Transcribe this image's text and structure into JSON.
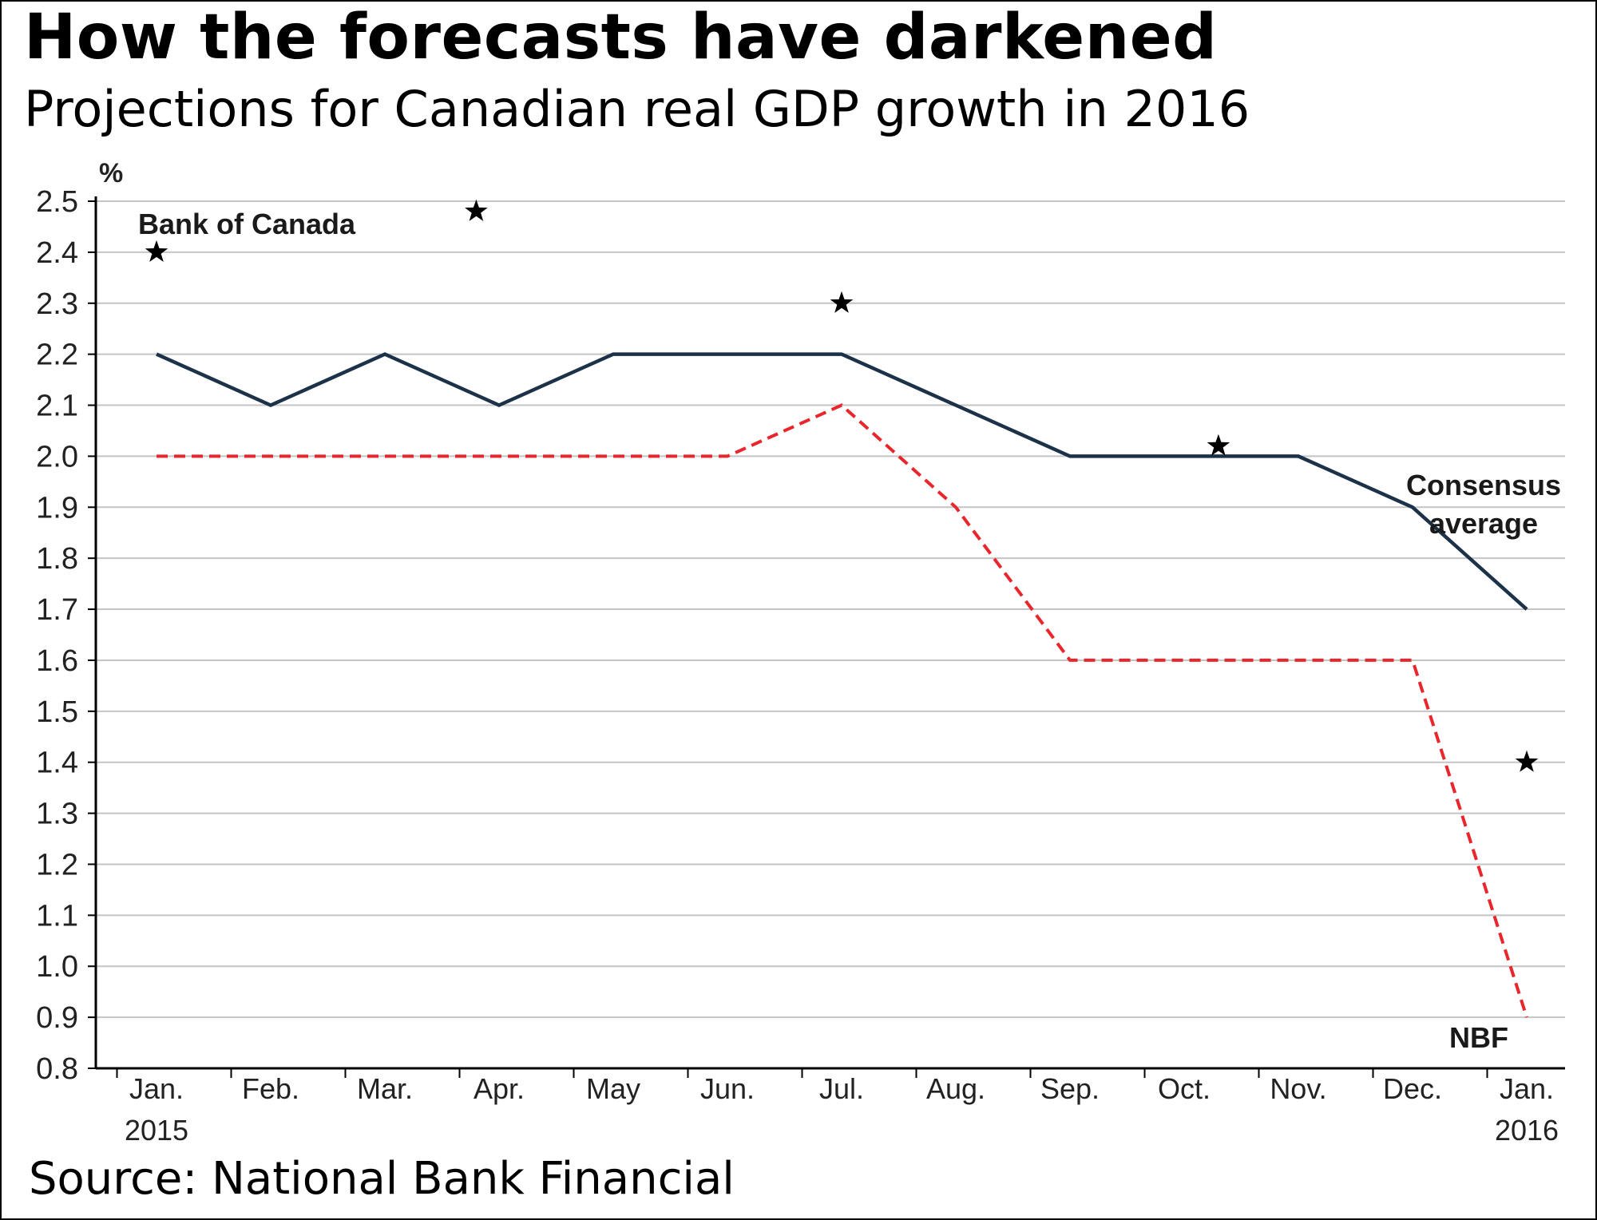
{
  "title": "How the forecasts have darkened",
  "subtitle": "Projections for Canadian real GDP growth in 2016",
  "source": "Source: National Bank Financial",
  "chart_data": {
    "type": "line",
    "title": "How the forecasts have darkened",
    "ylabel": "%",
    "xlabel": "",
    "ylim": [
      0.8,
      2.5
    ],
    "yticks": [
      "0.8",
      "0.9",
      "1.0",
      "1.1",
      "1.2",
      "1.3",
      "1.4",
      "1.5",
      "1.6",
      "1.7",
      "1.8",
      "1.9",
      "2.0",
      "2.1",
      "2.2",
      "2.3",
      "2.4",
      "2.5"
    ],
    "categories": [
      [
        "Jan.",
        "2015"
      ],
      [
        "Feb."
      ],
      [
        "Mar."
      ],
      [
        "Apr."
      ],
      [
        "May"
      ],
      [
        "Jun."
      ],
      [
        "Jul."
      ],
      [
        "Aug."
      ],
      [
        "Sep."
      ],
      [
        "Oct."
      ],
      [
        "Nov."
      ],
      [
        "Dec."
      ],
      [
        "Jan.",
        "2016"
      ]
    ],
    "grid": true,
    "series": [
      {
        "name": "Consensus average",
        "label_lines": [
          "Consensus",
          "average"
        ],
        "style": "solid",
        "color": "#1c3248",
        "values": [
          2.2,
          2.1,
          2.2,
          2.1,
          2.2,
          2.2,
          2.2,
          2.1,
          2.0,
          2.0,
          2.0,
          1.9,
          1.7
        ]
      },
      {
        "name": "NBF",
        "label_lines": [
          "NBF"
        ],
        "style": "dashed",
        "color": "#e8262c",
        "values": [
          2.0,
          2.0,
          2.0,
          2.0,
          2.0,
          2.0,
          2.1,
          1.9,
          1.6,
          1.6,
          1.6,
          1.6,
          0.9
        ]
      },
      {
        "name": "Bank of Canada",
        "label_lines": [
          "Bank of Canada"
        ],
        "style": "star",
        "color": "#000000",
        "points": [
          {
            "x": 0.0,
            "y": 2.4
          },
          {
            "x": 2.8,
            "y": 2.48
          },
          {
            "x": 6.0,
            "y": 2.3
          },
          {
            "x": 9.3,
            "y": 2.02
          },
          {
            "x": 12.0,
            "y": 1.4
          }
        ]
      }
    ]
  }
}
